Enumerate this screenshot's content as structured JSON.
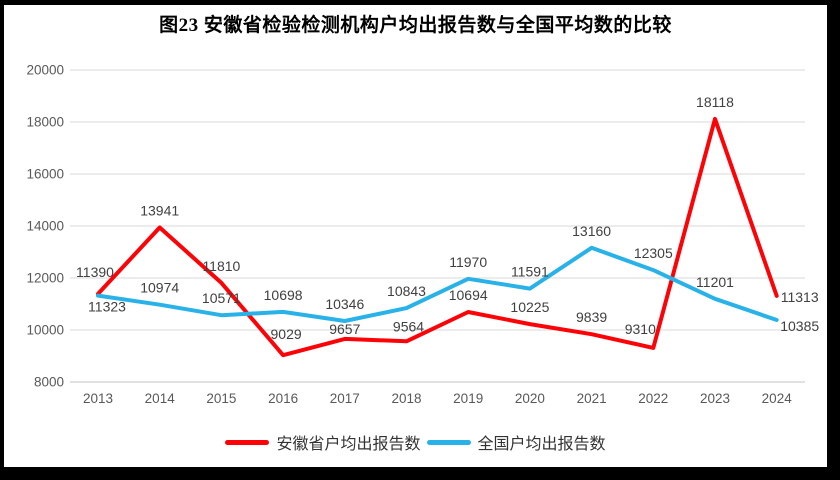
{
  "chart_data": {
    "type": "line",
    "title": "图23 安徽省检验检测机构户均出报告数与全国平均数的比较",
    "categories": [
      "2013",
      "2014",
      "2015",
      "2016",
      "2017",
      "2018",
      "2019",
      "2020",
      "2021",
      "2022",
      "2023",
      "2024"
    ],
    "series": [
      {
        "name": "安徽省户均出报告数",
        "color": "#FB0307",
        "values": [
          11390,
          13941,
          11810,
          9029,
          9657,
          9564,
          10694,
          10225,
          9839,
          9310,
          18118,
          11313
        ],
        "label_offsets": {
          "0": [
            -3,
            -17
          ],
          "3": [
            3,
            -16
          ],
          "4": [
            0,
            -5
          ],
          "5": [
            2,
            -10
          ],
          "9": [
            -13,
            -14
          ],
          "11": [
            23,
            6
          ]
        }
      },
      {
        "name": "全国户均出报告数",
        "color": "#29B2E8",
        "values": [
          11323,
          10974,
          10571,
          10698,
          10346,
          10843,
          11970,
          11591,
          13160,
          12305,
          11201,
          10385
        ],
        "label_offsets": {
          "0": [
            9,
            16
          ],
          "11": [
            23,
            11
          ]
        }
      }
    ],
    "ylim": [
      8000,
      20000
    ],
    "ytick_step": 2000,
    "ytick_labels": [
      "8000",
      "10000",
      "12000",
      "14000",
      "16000",
      "18000",
      "20000"
    ],
    "grid": "horizontal",
    "legend_position": "bottom",
    "colors": {
      "gridline": "#D9D9D9",
      "axis_line": "#C3C3C3",
      "tick_label": "#595959",
      "data_label": "#404040",
      "frame_border": "#000000"
    }
  }
}
